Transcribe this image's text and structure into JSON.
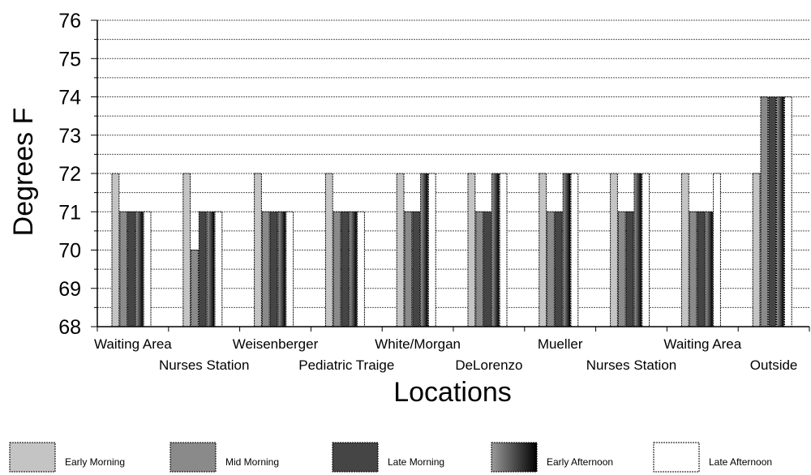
{
  "chart_data": {
    "type": "bar",
    "title": "",
    "xlabel": "Locations",
    "ylabel": "Degrees F",
    "ylim": [
      68,
      76
    ],
    "yticks": [
      68,
      69,
      70,
      71,
      72,
      73,
      74,
      75,
      76
    ],
    "grid": true,
    "legend_position": "bottom",
    "categories": [
      "Waiting Area",
      "Nurses Station",
      "Weisenberger",
      "Pediatric Traige",
      "White/Morgan",
      "DeLorenzo",
      "Mueller",
      "Nurses Station",
      "Waiting Area",
      "Outside"
    ],
    "series": [
      {
        "name": "Early Morning",
        "values": [
          72,
          72,
          72,
          72,
          72,
          72,
          72,
          72,
          72,
          72
        ]
      },
      {
        "name": "Mid Morning",
        "values": [
          71,
          70,
          71,
          71,
          71,
          71,
          71,
          71,
          71,
          74
        ]
      },
      {
        "name": "Late Morning",
        "values": [
          71,
          71,
          71,
          71,
          71,
          71,
          71,
          71,
          71,
          74
        ]
      },
      {
        "name": "Early Afternoon",
        "values": [
          71,
          71,
          71,
          71,
          72,
          72,
          72,
          72,
          71,
          74
        ]
      },
      {
        "name": "Late Afternoon",
        "values": [
          71,
          71,
          71,
          71,
          72,
          72,
          72,
          72,
          72,
          74
        ]
      }
    ],
    "colors": {
      "early_morning": "#c4c4c4",
      "mid_morning": "#8a8a8a",
      "late_morning": "#454545",
      "early_afternoon": "#222222",
      "late_afternoon": "#ffffff"
    }
  }
}
